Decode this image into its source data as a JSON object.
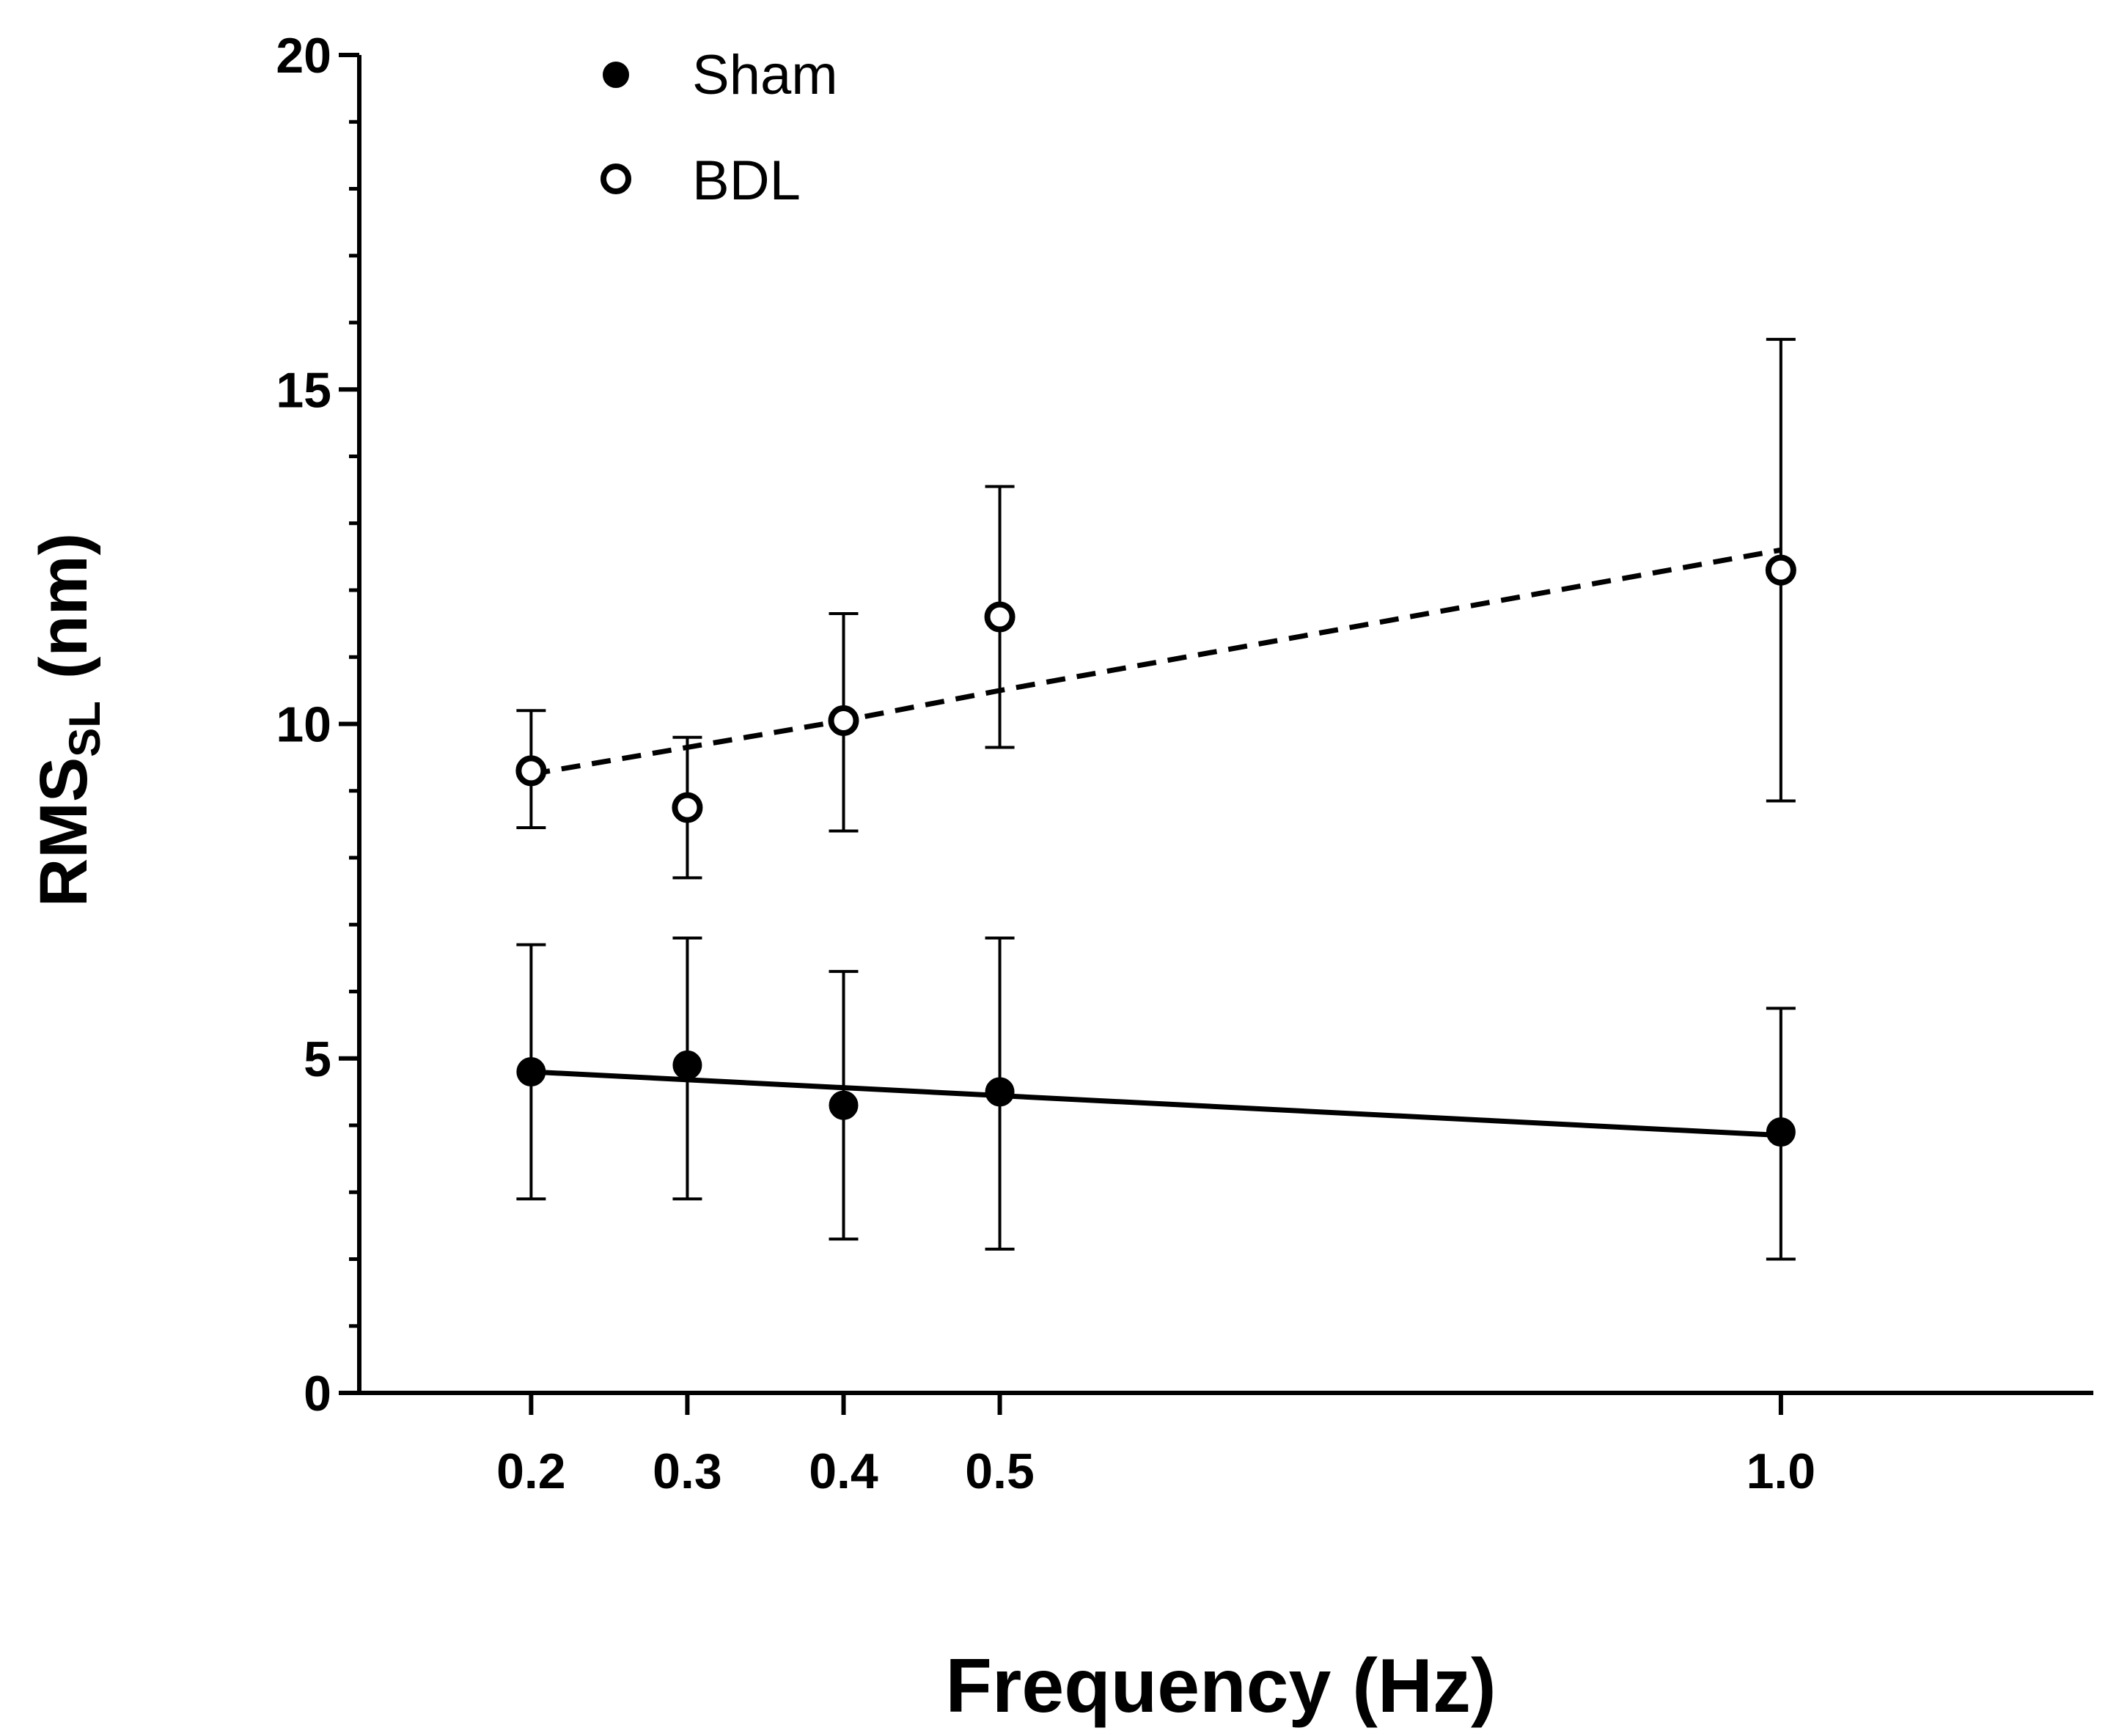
{
  "chart_data": {
    "type": "scatter",
    "title": "",
    "xlabel": "Frequency (Hz)",
    "ylabel": {
      "main": "RMS",
      "subscript": "SL",
      "unit": "(nm)"
    },
    "x_ticks": [
      "0.2",
      "0.3",
      "0.4",
      "0.5",
      "1.0"
    ],
    "y_ticks": [
      "0",
      "5",
      "10",
      "15",
      "20"
    ],
    "ylim": [
      0,
      20
    ],
    "xlim": [
      0.09,
      1.2
    ],
    "legend_position": "top-left",
    "colors": {
      "axis": "#000000",
      "marker": "#000000",
      "background": "#ffffff"
    },
    "series": [
      {
        "name": "Sham",
        "marker": "filled-circle",
        "x": [
          0.2,
          0.3,
          0.4,
          0.5,
          1.0
        ],
        "y": [
          4.8,
          4.9,
          4.3,
          4.5,
          3.9
        ],
        "error_low": [
          2.9,
          2.9,
          2.3,
          2.15,
          2.0
        ],
        "error_high": [
          6.7,
          6.8,
          6.3,
          6.8,
          5.75
        ],
        "fit": {
          "style": "solid",
          "x": [
            0.2,
            1.0
          ],
          "y": [
            4.8,
            3.85
          ]
        }
      },
      {
        "name": "BDL",
        "marker": "open-circle",
        "x": [
          0.2,
          0.3,
          0.4,
          0.5,
          1.0
        ],
        "y": [
          9.3,
          8.75,
          10.05,
          11.6,
          12.3
        ],
        "error_low": [
          8.45,
          7.7,
          8.4,
          9.65,
          8.85
        ],
        "error_high": [
          10.2,
          9.8,
          11.65,
          13.55,
          15.75
        ],
        "fit": {
          "style": "dashed",
          "x": [
            0.2,
            0.3,
            0.4,
            0.5,
            1.0
          ],
          "y": [
            9.25,
            9.65,
            10.05,
            10.5,
            12.6
          ]
        }
      }
    ]
  }
}
